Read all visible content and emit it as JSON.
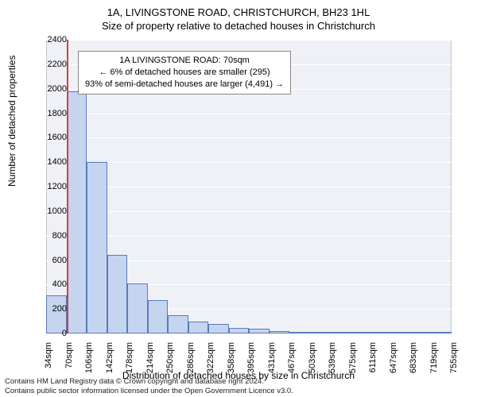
{
  "titles": {
    "main": "1A, LIVINGSTONE ROAD, CHRISTCHURCH, BH23 1HL",
    "sub": "Size of property relative to detached houses in Christchurch"
  },
  "axes": {
    "y_title": "Number of detached properties",
    "x_title": "Distribution of detached houses by size in Christchurch",
    "y_min": 0,
    "y_max": 2400,
    "y_tick_step": 200,
    "x_labels": [
      "34sqm",
      "70sqm",
      "106sqm",
      "142sqm",
      "178sqm",
      "214sqm",
      "250sqm",
      "286sqm",
      "322sqm",
      "358sqm",
      "395sqm",
      "431sqm",
      "467sqm",
      "503sqm",
      "539sqm",
      "575sqm",
      "611sqm",
      "647sqm",
      "683sqm",
      "719sqm",
      "755sqm"
    ]
  },
  "histogram": {
    "type": "histogram",
    "values": [
      310,
      1980,
      1400,
      640,
      410,
      270,
      150,
      95,
      75,
      45,
      40,
      20,
      10,
      8,
      5,
      3,
      2,
      2,
      1,
      1
    ],
    "bar_fill": "#c5d4ef",
    "bar_stroke": "#5a7bb8",
    "background_color": "#f0f1f7",
    "grid_color": "#ffffff"
  },
  "marker": {
    "value_label": "70sqm",
    "color": "#d04040"
  },
  "annotation": {
    "line1": "1A LIVINGSTONE ROAD: 70sqm",
    "line2": "← 6% of detached houses are smaller (295)",
    "line3": "93% of semi-detached houses are larger (4,491) →"
  },
  "footer": {
    "line1": "Contains HM Land Registry data © Crown copyright and database right 2024.",
    "line2": "Contains public sector information licensed under the Open Government Licence v3.0."
  }
}
